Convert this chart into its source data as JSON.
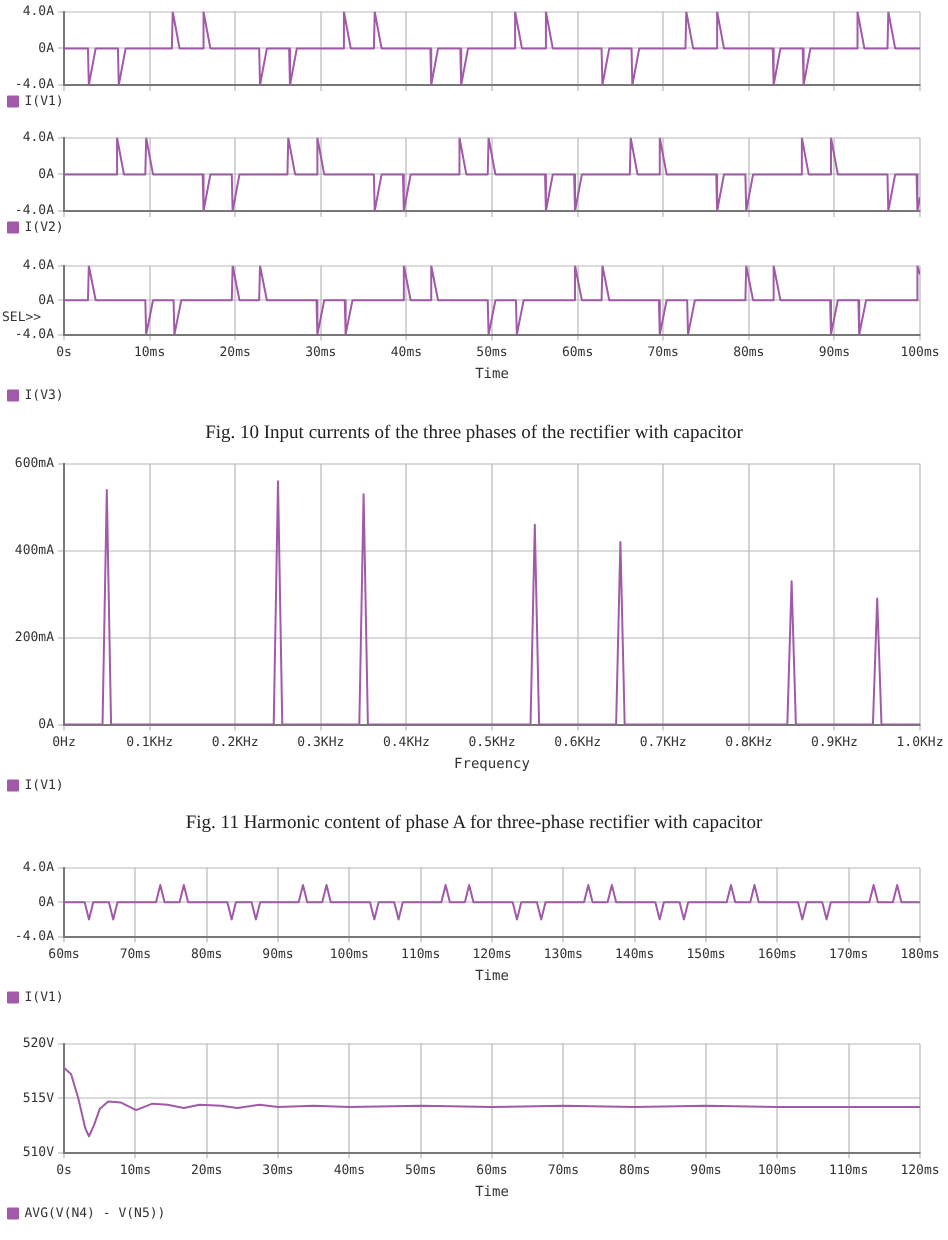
{
  "chart_data": [
    {
      "type": "line",
      "legend": "bottom left",
      "grid": true,
      "tick_labels": "y",
      "xlim": [
        0,
        100
      ],
      "xticks": [
        {
          "value": 0,
          "label": null
        },
        {
          "value": 10,
          "label": null
        },
        {
          "value": 20,
          "label": null
        },
        {
          "value": 30,
          "label": null
        },
        {
          "value": 40,
          "label": null
        },
        {
          "value": 50,
          "label": null
        },
        {
          "value": 60,
          "label": null
        },
        {
          "value": 70,
          "label": null
        },
        {
          "value": 80,
          "label": null
        },
        {
          "value": 90,
          "label": null
        },
        {
          "value": 100,
          "label": null
        }
      ],
      "ylim": [
        -4,
        4
      ],
      "yticks": [
        {
          "value": -4,
          "label": "-4.0A"
        },
        {
          "value": 0,
          "label": "0A"
        },
        {
          "value": 4,
          "label": "4.0A"
        }
      ],
      "series": [
        {
          "name": "I(V1)",
          "color": "#a05aa8",
          "x": [
            0,
            2.8,
            2.9,
            3.7,
            6.3,
            6.4,
            7.2,
            12.6,
            12.7,
            13.5,
            16.2,
            16.3,
            17.1,
            22.8,
            22.9,
            23.7,
            26.3,
            26.4,
            27.2,
            32.6,
            32.7,
            33.5,
            36.2,
            36.3,
            37.1,
            42.8,
            42.9,
            43.7,
            46.3,
            46.4,
            47.2,
            52.6,
            52.7,
            53.5,
            56.2,
            56.3,
            57.1,
            62.8,
            62.9,
            63.7,
            66.3,
            66.4,
            67.2,
            72.6,
            72.7,
            73.5,
            76.2,
            76.3,
            77.1,
            82.8,
            82.9,
            83.7,
            86.3,
            86.4,
            87.2,
            92.6,
            92.7,
            93.5,
            96.2,
            96.3,
            97.1,
            100
          ],
          "values": [
            0,
            0,
            -4,
            0,
            0,
            -4,
            0,
            0,
            4,
            0,
            0,
            4,
            0,
            0,
            -4,
            0,
            0,
            -4,
            0,
            0,
            4,
            0,
            0,
            4,
            0,
            0,
            -4,
            0,
            0,
            -4,
            0,
            0,
            4,
            0,
            0,
            4,
            0,
            0,
            -4,
            0,
            0,
            -4,
            0,
            0,
            4,
            0,
            0,
            4,
            0,
            0,
            -4,
            0,
            0,
            -4,
            0,
            0,
            4,
            0,
            0,
            4,
            0,
            0
          ]
        }
      ]
    },
    {
      "type": "line",
      "legend": "bottom left",
      "grid": true,
      "tick_labels": "y",
      "xlim": [
        0,
        100
      ],
      "xticks": [
        {
          "value": 0,
          "label": null
        },
        {
          "value": 10,
          "label": null
        },
        {
          "value": 20,
          "label": null
        },
        {
          "value": 30,
          "label": null
        },
        {
          "value": 40,
          "label": null
        },
        {
          "value": 50,
          "label": null
        },
        {
          "value": 60,
          "label": null
        },
        {
          "value": 70,
          "label": null
        },
        {
          "value": 80,
          "label": null
        },
        {
          "value": 90,
          "label": null
        },
        {
          "value": 100,
          "label": null
        }
      ],
      "ylim": [
        -4,
        4
      ],
      "yticks": [
        {
          "value": -4,
          "label": "-4.0A"
        },
        {
          "value": 0,
          "label": "0A"
        },
        {
          "value": 4,
          "label": "4.0A"
        }
      ],
      "series": [
        {
          "name": "I(V2)",
          "color": "#a05aa8",
          "x": [
            0,
            6.1,
            6.2,
            7.0,
            9.5,
            9.6,
            10.4,
            16.2,
            16.3,
            17.1,
            19.6,
            19.7,
            20.5,
            26.1,
            26.2,
            27.0,
            29.5,
            29.6,
            30.4,
            36.2,
            36.3,
            37.1,
            39.6,
            39.7,
            40.5,
            46.1,
            46.2,
            47.0,
            49.5,
            49.6,
            50.4,
            56.2,
            56.3,
            57.1,
            59.6,
            59.7,
            60.5,
            66.1,
            66.2,
            67.0,
            69.5,
            69.6,
            70.4,
            76.2,
            76.3,
            77.1,
            79.6,
            79.7,
            80.5,
            86.1,
            86.2,
            87.0,
            89.5,
            89.6,
            90.4,
            96.2,
            96.3,
            97.1,
            99.6,
            99.7,
            100
          ],
          "values": [
            0,
            0,
            4,
            0,
            0,
            4,
            0,
            0,
            -4,
            0,
            0,
            -4,
            0,
            0,
            4,
            0,
            0,
            4,
            0,
            0,
            -4,
            0,
            0,
            -4,
            0,
            0,
            4,
            0,
            0,
            4,
            0,
            0,
            -4,
            0,
            0,
            -4,
            0,
            0,
            4,
            0,
            0,
            4,
            0,
            0,
            -4,
            0,
            0,
            -4,
            0,
            0,
            4,
            0,
            0,
            4,
            0,
            0,
            -4,
            0,
            0,
            -4,
            -2.5
          ]
        }
      ]
    },
    {
      "type": "line",
      "legend": "bottom left",
      "grid": true,
      "xlabel": "Time",
      "ylabel": "SEL>>",
      "xlim": [
        0,
        100
      ],
      "xticks": [
        {
          "value": 0,
          "label": "0s"
        },
        {
          "value": 10,
          "label": "10ms"
        },
        {
          "value": 20,
          "label": "20ms"
        },
        {
          "value": 30,
          "label": "30ms"
        },
        {
          "value": 40,
          "label": "40ms"
        },
        {
          "value": 50,
          "label": "50ms"
        },
        {
          "value": 60,
          "label": "60ms"
        },
        {
          "value": 70,
          "label": "70ms"
        },
        {
          "value": 80,
          "label": "80ms"
        },
        {
          "value": 90,
          "label": "90ms"
        },
        {
          "value": 100,
          "label": "100ms"
        }
      ],
      "ylim": [
        -4,
        4
      ],
      "yticks": [
        {
          "value": -4,
          "label": "-4.0A"
        },
        {
          "value": 0,
          "label": "0A"
        },
        {
          "value": 4,
          "label": "4.0A"
        }
      ],
      "annotations": [
        "Fig. 10 Input currents of the three phases of the rectifier with capacitor"
      ],
      "series": [
        {
          "name": "I(V3)",
          "color": "#a05aa8",
          "x": [
            0,
            2.8,
            2.9,
            3.7,
            9.5,
            9.6,
            10.4,
            12.8,
            12.9,
            13.7,
            19.6,
            19.7,
            20.5,
            22.8,
            22.9,
            23.7,
            29.5,
            29.6,
            30.4,
            32.8,
            32.9,
            33.7,
            39.6,
            39.7,
            40.5,
            42.8,
            42.9,
            43.7,
            49.5,
            49.6,
            50.4,
            52.8,
            52.9,
            53.7,
            59.6,
            59.7,
            60.5,
            62.8,
            62.9,
            63.7,
            69.5,
            69.6,
            70.4,
            72.8,
            72.9,
            73.7,
            79.6,
            79.7,
            80.5,
            82.8,
            82.9,
            83.7,
            89.5,
            89.6,
            90.4,
            92.8,
            92.9,
            93.7,
            99.6,
            99.7,
            100
          ],
          "values": [
            0,
            0,
            4,
            0,
            0,
            -4,
            0,
            0,
            -4,
            0,
            0,
            4,
            0,
            0,
            4,
            0,
            0,
            -4,
            0,
            0,
            -4,
            0,
            0,
            4,
            0,
            0,
            4,
            0,
            0,
            -4,
            0,
            0,
            -4,
            0,
            0,
            4,
            0,
            0,
            4,
            0,
            0,
            -4,
            0,
            0,
            -4,
            0,
            0,
            4,
            0,
            0,
            4,
            0,
            0,
            -4,
            0,
            0,
            -4,
            0,
            0,
            4,
            3
          ]
        }
      ]
    },
    {
      "type": "line",
      "legend": "bottom left",
      "grid": true,
      "xlabel": "Frequency",
      "xlim": [
        0,
        1
      ],
      "xticks": [
        {
          "value": 0,
          "label": "0Hz"
        },
        {
          "value": 0.1,
          "label": "0.1KHz"
        },
        {
          "value": 0.2,
          "label": "0.2KHz"
        },
        {
          "value": 0.3,
          "label": "0.3KHz"
        },
        {
          "value": 0.4,
          "label": "0.4KHz"
        },
        {
          "value": 0.5,
          "label": "0.5KHz"
        },
        {
          "value": 0.6,
          "label": "0.6KHz"
        },
        {
          "value": 0.7,
          "label": "0.7KHz"
        },
        {
          "value": 0.8,
          "label": "0.8KHz"
        },
        {
          "value": 0.9,
          "label": "0.9KHz"
        },
        {
          "value": 1,
          "label": "1.0KHz"
        }
      ],
      "ylim": [
        0,
        600
      ],
      "yticks": [
        {
          "value": 0,
          "label": "0A"
        },
        {
          "value": 200,
          "label": "200mA"
        },
        {
          "value": 400,
          "label": "400mA"
        },
        {
          "value": 600,
          "label": "600mA"
        }
      ],
      "annotations": [
        "Fig. 11 Harmonic content of phase A for three-phase rectifier with capacitor"
      ],
      "series": [
        {
          "name": "I(V1)",
          "color": "#a05aa8",
          "x": [
            0,
            0.045,
            0.05,
            0.055,
            0.245,
            0.25,
            0.255,
            0.345,
            0.35,
            0.355,
            0.545,
            0.55,
            0.555,
            0.645,
            0.65,
            0.655,
            0.845,
            0.85,
            0.855,
            0.945,
            0.95,
            0.955,
            1
          ],
          "values": [
            0,
            0,
            540,
            0,
            0,
            560,
            0,
            0,
            530,
            0,
            0,
            460,
            0,
            0,
            420,
            0,
            0,
            330,
            0,
            0,
            290,
            0,
            0
          ]
        }
      ]
    },
    {
      "type": "line",
      "legend": "bottom left",
      "grid": true,
      "xlabel": "Time",
      "xlim": [
        60,
        180
      ],
      "xticks": [
        {
          "value": 60,
          "label": "60ms"
        },
        {
          "value": 70,
          "label": "70ms"
        },
        {
          "value": 80,
          "label": "80ms"
        },
        {
          "value": 90,
          "label": "90ms"
        },
        {
          "value": 100,
          "label": "100ms"
        },
        {
          "value": 110,
          "label": "110ms"
        },
        {
          "value": 120,
          "label": "120ms"
        },
        {
          "value": 130,
          "label": "130ms"
        },
        {
          "value": 140,
          "label": "140ms"
        },
        {
          "value": 150,
          "label": "150ms"
        },
        {
          "value": 160,
          "label": "160ms"
        },
        {
          "value": 170,
          "label": "170ms"
        },
        {
          "value": 180,
          "label": "180ms"
        }
      ],
      "ylim": [
        -4,
        4
      ],
      "yticks": [
        {
          "value": -4,
          "label": "-4.0A"
        },
        {
          "value": 0,
          "label": "0A"
        },
        {
          "value": 4,
          "label": "4.0A"
        }
      ],
      "series": [
        {
          "name": "I(V1)",
          "color": "#a05aa8",
          "x": [
            60,
            62.9,
            63.5,
            64.1,
            66.3,
            66.9,
            67.5,
            72.9,
            73.5,
            74.1,
            76.2,
            76.8,
            77.4,
            82.9,
            83.5,
            84.1,
            86.3,
            86.9,
            87.5,
            92.9,
            93.5,
            94.1,
            96.2,
            96.8,
            97.4,
            102.9,
            103.5,
            104.1,
            106.3,
            106.9,
            107.5,
            112.9,
            113.5,
            114.1,
            116.2,
            116.8,
            117.4,
            122.9,
            123.5,
            124.1,
            126.3,
            126.9,
            127.5,
            132.9,
            133.5,
            134.1,
            136.2,
            136.8,
            137.4,
            142.9,
            143.5,
            144.1,
            146.3,
            146.9,
            147.5,
            152.9,
            153.5,
            154.1,
            156.2,
            156.8,
            157.4,
            162.9,
            163.5,
            164.1,
            166.3,
            166.9,
            167.5,
            172.9,
            173.5,
            174.1,
            176.2,
            176.8,
            177.4,
            180
          ],
          "values": [
            0,
            0,
            -2,
            0,
            0,
            -2,
            0,
            0,
            2,
            0,
            0,
            2,
            0,
            0,
            -2,
            0,
            0,
            -2,
            0,
            0,
            2,
            0,
            0,
            2,
            0,
            0,
            -2,
            0,
            0,
            -2,
            0,
            0,
            2,
            0,
            0,
            2,
            0,
            0,
            -2,
            0,
            0,
            -2,
            0,
            0,
            2,
            0,
            0,
            2,
            0,
            0,
            -2,
            0,
            0,
            -2,
            0,
            0,
            2,
            0,
            0,
            2,
            0,
            0,
            -2,
            0,
            0,
            -2,
            0,
            0,
            2,
            0,
            0,
            2,
            0,
            0
          ]
        }
      ]
    },
    {
      "type": "line",
      "legend": "bottom left",
      "grid": true,
      "xlabel": "Time",
      "xlim": [
        0,
        120
      ],
      "xticks": [
        {
          "value": 0,
          "label": "0s"
        },
        {
          "value": 10,
          "label": "10ms"
        },
        {
          "value": 20,
          "label": "20ms"
        },
        {
          "value": 30,
          "label": "30ms"
        },
        {
          "value": 40,
          "label": "40ms"
        },
        {
          "value": 50,
          "label": "50ms"
        },
        {
          "value": 60,
          "label": "60ms"
        },
        {
          "value": 70,
          "label": "70ms"
        },
        {
          "value": 80,
          "label": "80ms"
        },
        {
          "value": 90,
          "label": "90ms"
        },
        {
          "value": 100,
          "label": "100ms"
        },
        {
          "value": 110,
          "label": "110ms"
        },
        {
          "value": 120,
          "label": "120ms"
        }
      ],
      "ylim": [
        510,
        520
      ],
      "yticks": [
        {
          "value": 510,
          "label": "510V"
        },
        {
          "value": 515,
          "label": "515V"
        },
        {
          "value": 520,
          "label": "520V"
        }
      ],
      "series": [
        {
          "name": "AVG(V(N4) - V(N5))",
          "color": "#a05aa8",
          "x": [
            0,
            1,
            2,
            3,
            3.5,
            4.2,
            5,
            6.2,
            8,
            10.1,
            12.4,
            14.5,
            16.8,
            19,
            22,
            24.3,
            27.4,
            30,
            35,
            40,
            50,
            60,
            70,
            80,
            90,
            100,
            110,
            120
          ],
          "values": [
            517.8,
            517.2,
            515,
            512.2,
            511.5,
            512.5,
            514,
            514.7,
            514.6,
            513.9,
            514.5,
            514.4,
            514.1,
            514.4,
            514.3,
            514.1,
            514.4,
            514.2,
            514.3,
            514.2,
            514.3,
            514.2,
            514.3,
            514.2,
            514.3,
            514.2,
            514.2,
            514.2
          ]
        }
      ]
    }
  ]
}
